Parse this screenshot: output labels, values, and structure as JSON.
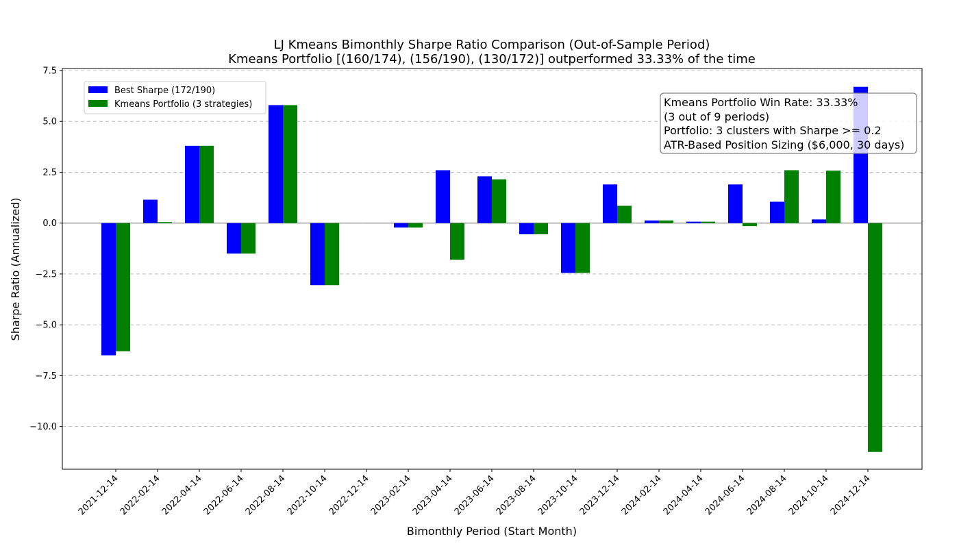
{
  "chart_data": {
    "type": "bar",
    "title": "LJ Kmeans Bimonthly Sharpe Ratio Comparison (Out-of-Sample Period)",
    "subtitle": "Kmeans Portfolio [(160/174), (156/190), (130/172)] outperformed 33.33% of the time",
    "xlabel": "Bimonthly Period (Start Month)",
    "ylabel": "Sharpe Ratio (Annualized)",
    "ylim": [
      -12.1,
      7.6
    ],
    "yticks": [
      7.5,
      5.0,
      2.5,
      0.0,
      -2.5,
      -5.0,
      -7.5,
      -10.0
    ],
    "ytick_labels": [
      "7.5",
      "5.0",
      "2.5",
      "0.0",
      "−2.5",
      "−5.0",
      "−7.5",
      "−10.0"
    ],
    "grid": "y dashed",
    "legend_position": "upper-left",
    "categories": [
      "2021-12-14",
      "2022-02-14",
      "2022-04-14",
      "2022-06-14",
      "2022-08-14",
      "2022-10-14",
      "2022-12-14",
      "2023-02-14",
      "2023-04-14",
      "2023-06-14",
      "2023-08-14",
      "2023-10-14",
      "2023-12-14",
      "2024-02-14",
      "2024-04-14",
      "2024-06-14",
      "2024-08-14",
      "2024-10-14",
      "2024-12-14"
    ],
    "series": [
      {
        "name": "Best Sharpe (172/190)",
        "color": "#0000ff",
        "values": [
          -6.5,
          1.15,
          3.8,
          -1.5,
          5.8,
          -3.05,
          0.0,
          -0.22,
          2.6,
          2.3,
          -0.55,
          -2.45,
          1.9,
          0.13,
          0.07,
          1.9,
          1.05,
          0.18,
          6.7
        ]
      },
      {
        "name": "Kmeans Portfolio (3 strategies)",
        "color": "#008000",
        "values": [
          -6.3,
          0.05,
          3.8,
          -1.5,
          5.8,
          -3.05,
          0.0,
          -0.22,
          -1.8,
          2.15,
          -0.55,
          -2.45,
          0.85,
          0.13,
          0.07,
          -0.15,
          2.6,
          2.58,
          -11.25
        ]
      }
    ],
    "annotation": {
      "lines": [
        "Kmeans Portfolio Win Rate: 33.33%",
        "(3 out of 9 periods)",
        "Portfolio: 3 clusters with Sharpe >= 0.2",
        "ATR-Based Position Sizing ($6,000, 30 days)"
      ],
      "position": "upper-right"
    }
  }
}
